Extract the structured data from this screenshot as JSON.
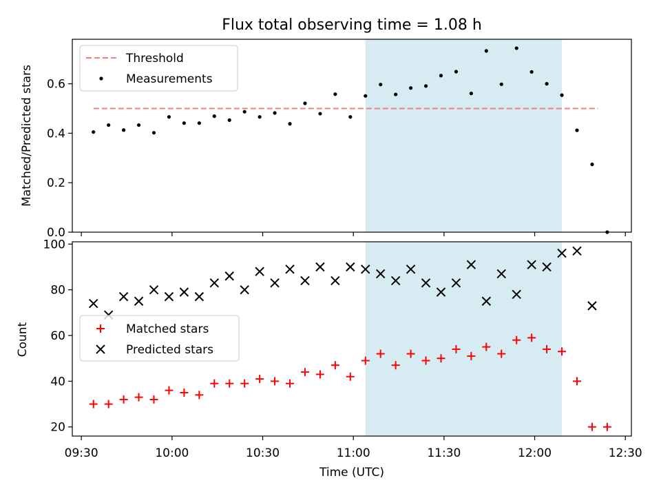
{
  "figure_title": "Flux total observing time = 1.08 h",
  "chart_data": [
    {
      "type": "scatter",
      "ylabel": "Matched/Predicted stars",
      "ylim": [
        0,
        0.78
      ],
      "yticks": [
        "0.0",
        "0.2",
        "0.4",
        "0.6"
      ],
      "threshold": {
        "name": "Threshold",
        "value": 0.5,
        "color": "#f08080",
        "style": "dashed",
        "x_range": [
          "09:34",
          "12:21"
        ]
      },
      "series": [
        {
          "name": "Measurements",
          "color": "#000000",
          "marker": "dot",
          "x": [
            "09:34",
            "09:39",
            "09:44",
            "09:49",
            "09:54",
            "09:59",
            "10:04",
            "10:09",
            "10:14",
            "10:19",
            "10:24",
            "10:29",
            "10:34",
            "10:39",
            "10:44",
            "10:49",
            "10:54",
            "10:59",
            "11:04",
            "11:09",
            "11:14",
            "11:19",
            "11:24",
            "11:29",
            "11:34",
            "11:39",
            "11:44",
            "11:49",
            "11:54",
            "11:59",
            "12:04",
            "12:09",
            "12:14",
            "12:19",
            "12:24"
          ],
          "y": [
            0.405,
            0.433,
            0.413,
            0.433,
            0.402,
            0.466,
            0.441,
            0.441,
            0.469,
            0.453,
            0.487,
            0.466,
            0.482,
            0.438,
            0.521,
            0.479,
            0.558,
            0.466,
            0.551,
            0.597,
            0.557,
            0.583,
            0.591,
            0.633,
            0.649,
            0.561,
            0.733,
            0.598,
            0.744,
            0.648,
            0.6,
            0.554,
            0.412,
            0.274,
            0.0
          ]
        }
      ],
      "legend": "upper left"
    },
    {
      "type": "scatter",
      "ylabel": "Count",
      "xlabel": "Time (UTC)",
      "ylim": [
        16,
        101
      ],
      "yticks": [
        "20",
        "40",
        "60",
        "80",
        "100"
      ],
      "series": [
        {
          "name": "Matched stars",
          "color": "#ff0000",
          "marker": "plus",
          "x": [
            "09:34",
            "09:39",
            "09:44",
            "09:49",
            "09:54",
            "09:59",
            "10:04",
            "10:09",
            "10:14",
            "10:19",
            "10:24",
            "10:29",
            "10:34",
            "10:39",
            "10:44",
            "10:49",
            "10:54",
            "10:59",
            "11:04",
            "11:09",
            "11:14",
            "11:19",
            "11:24",
            "11:29",
            "11:34",
            "11:39",
            "11:44",
            "11:49",
            "11:54",
            "11:59",
            "12:04",
            "12:09",
            "12:14",
            "12:19",
            "12:24"
          ],
          "y": [
            30,
            30,
            32,
            33,
            32,
            36,
            35,
            34,
            39,
            39,
            39,
            41,
            40,
            39,
            44,
            43,
            47,
            42,
            49,
            52,
            47,
            52,
            49,
            50,
            54,
            51,
            55,
            52,
            58,
            59,
            54,
            53,
            40,
            20,
            20
          ]
        },
        {
          "name": "Predicted stars",
          "color": "#000000",
          "marker": "x",
          "x": [
            "09:34",
            "09:39",
            "09:44",
            "09:49",
            "09:54",
            "09:59",
            "10:04",
            "10:09",
            "10:14",
            "10:19",
            "10:24",
            "10:29",
            "10:34",
            "10:39",
            "10:44",
            "10:49",
            "10:54",
            "10:59",
            "11:04",
            "11:09",
            "11:14",
            "11:19",
            "11:24",
            "11:29",
            "11:34",
            "11:39",
            "11:44",
            "11:49",
            "11:54",
            "11:59",
            "12:04",
            "12:09",
            "12:14",
            "12:19"
          ],
          "y": [
            74,
            69,
            77,
            75,
            80,
            77,
            79,
            77,
            83,
            86,
            80,
            88,
            83,
            89,
            84,
            90,
            84,
            90,
            89,
            87,
            84,
            89,
            83,
            79,
            83,
            91,
            75,
            87,
            78,
            91,
            90,
            96,
            97,
            73
          ]
        }
      ],
      "legend": "center left"
    }
  ],
  "shared_x": {
    "type": "time",
    "xlim": [
      "09:27",
      "12:32"
    ],
    "ticks": [
      "09:30",
      "10:00",
      "10:30",
      "11:00",
      "11:30",
      "12:00",
      "12:30"
    ]
  },
  "highlight_span": {
    "from": "11:04",
    "to": "12:09",
    "color": "#add8e6",
    "opacity": 0.5
  },
  "colors": {
    "threshold": "#f08080",
    "matched": "#ff0000",
    "predicted": "#000000",
    "span": "#add8e6"
  }
}
